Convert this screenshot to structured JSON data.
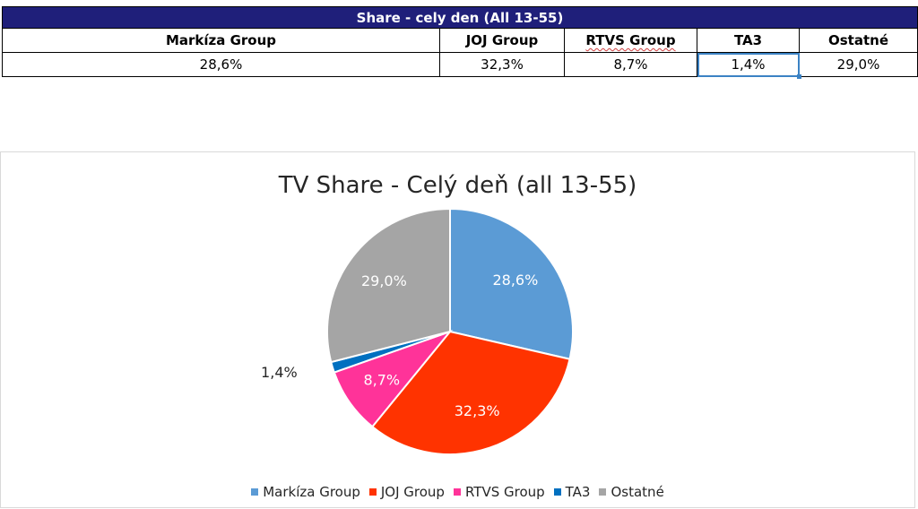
{
  "table": {
    "title": "Share - cely den (All 13-55)",
    "headers": [
      "Markíza Group",
      "JOJ Group",
      "RTVS Group",
      "TA3",
      "Ostatné"
    ],
    "values": [
      "28,6%",
      "32,3%",
      "8,7%",
      "1,4%",
      "29,0%"
    ]
  },
  "chart_data": {
    "type": "pie",
    "title": "TV Share - Celý deň (all 13-55)",
    "categories": [
      "Markíza Group",
      "JOJ Group",
      "RTVS Group",
      "TA3",
      "Ostatné"
    ],
    "values": [
      28.6,
      32.3,
      8.7,
      1.4,
      29.0
    ],
    "labels": [
      "28,6%",
      "32,3%",
      "8,7%",
      "1,4%",
      "29,0%"
    ],
    "colors": [
      "#5b9bd5",
      "#ff3300",
      "#ff3399",
      "#0070c0",
      "#a5a5a5"
    ],
    "legend": "bottom"
  }
}
